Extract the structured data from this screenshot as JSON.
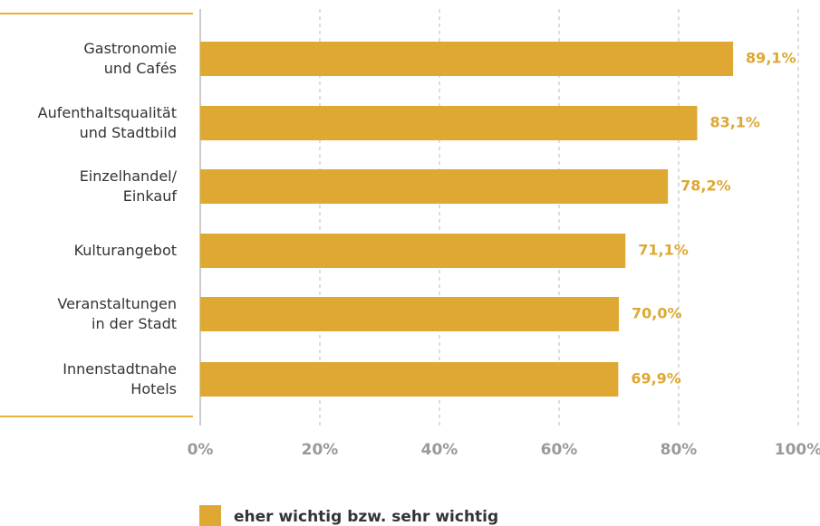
{
  "chart_data": {
    "type": "bar",
    "orientation": "horizontal",
    "categories": [
      [
        "Gastronomie",
        "und Cafés"
      ],
      [
        "Aufenthaltsqualität",
        "und Stadtbild"
      ],
      [
        "Einzelhandel/",
        "Einkauf"
      ],
      [
        "Kulturangebot"
      ],
      [
        "Veranstaltungen",
        "in der Stadt"
      ],
      [
        "Innenstadtnahe",
        "Hotels"
      ]
    ],
    "series": [
      {
        "name": "eher wichtig bzw. sehr wichtig",
        "color": "#dea833",
        "values": [
          89.1,
          83.1,
          78.2,
          71.1,
          70.0,
          69.9
        ],
        "value_labels": [
          "89,1%",
          "83,1%",
          "78,2%",
          "71,1%",
          "70,0%",
          "69,9%"
        ]
      }
    ],
    "xlim": [
      0,
      100
    ],
    "xticks": [
      {
        "value": 0,
        "label": "0%"
      },
      {
        "value": 20,
        "label": "20%"
      },
      {
        "value": 40,
        "label": "40%"
      },
      {
        "value": 60,
        "label": "60%"
      },
      {
        "value": 80,
        "label": "80%"
      },
      {
        "value": 100,
        "label": "100%"
      }
    ],
    "grid": true,
    "legend": "bottom"
  }
}
